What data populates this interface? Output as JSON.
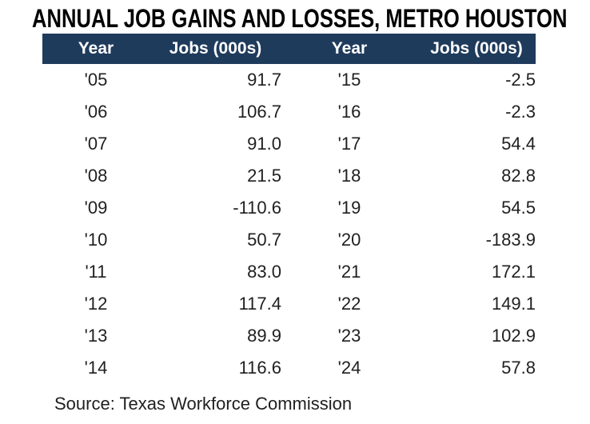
{
  "title": "ANNUAL JOB GAINS AND LOSSES, METRO HOUSTON",
  "source": "Source: Texas Workforce Commission",
  "colors": {
    "header_bg": "#1f3b5c",
    "header_text": "#ffffff",
    "body_text": "#1f1f1f",
    "title_text": "#000000",
    "background": "#ffffff"
  },
  "table": {
    "headers": [
      "Year",
      "Jobs (000s)",
      "Year",
      "Jobs (000s)"
    ],
    "rows": [
      [
        "'05",
        "91.7",
        "'15",
        "-2.5"
      ],
      [
        "'06",
        "106.7",
        "'16",
        "-2.3"
      ],
      [
        "'07",
        "91.0",
        "'17",
        "54.4"
      ],
      [
        "'08",
        "21.5",
        "'18",
        "82.8"
      ],
      [
        "'09",
        "-110.6",
        "'19",
        "54.5"
      ],
      [
        "'10",
        "50.7",
        "'20",
        "-183.9"
      ],
      [
        "'11",
        "83.0",
        "'21",
        "172.1"
      ],
      [
        "'12",
        "117.4",
        "'22",
        "149.1"
      ],
      [
        "'13",
        "89.9",
        "'23",
        "102.9"
      ],
      [
        "'14",
        "116.6",
        "'24",
        "57.8"
      ]
    ]
  },
  "chart_data": {
    "type": "table",
    "title": "ANNUAL JOB GAINS AND LOSSES, METRO HOUSTON",
    "columns": [
      "Year",
      "Jobs (000s)",
      "Year",
      "Jobs (000s)"
    ],
    "units": "thousands of jobs",
    "series": [
      {
        "name": "Jobs (000s)",
        "x": [
          "'05",
          "'06",
          "'07",
          "'08",
          "'09",
          "'10",
          "'11",
          "'12",
          "'13",
          "'14",
          "'15",
          "'16",
          "'17",
          "'18",
          "'19",
          "'20",
          "'21",
          "'22",
          "'23",
          "'24"
        ],
        "values": [
          91.7,
          106.7,
          91.0,
          21.5,
          -110.6,
          50.7,
          83.0,
          117.4,
          89.9,
          116.6,
          -2.5,
          -2.3,
          54.4,
          82.8,
          54.5,
          -183.9,
          172.1,
          149.1,
          102.9,
          57.8
        ]
      }
    ],
    "source": "Source: Texas Workforce Commission"
  }
}
